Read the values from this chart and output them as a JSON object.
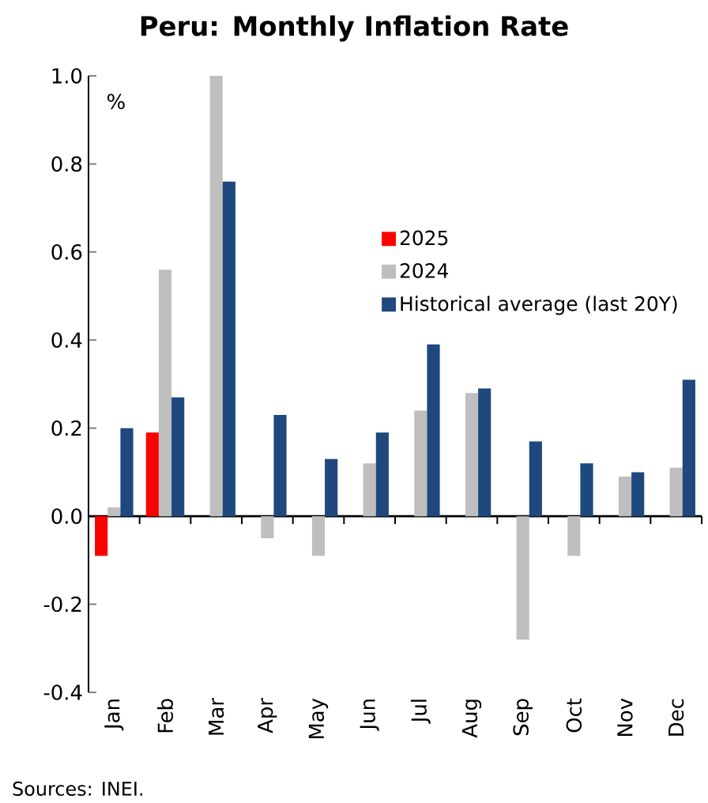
{
  "chart_data": {
    "type": "bar",
    "title": "Peru: Monthly Inflation Rate",
    "ylabel": "%",
    "categories": [
      "Jan",
      "Feb",
      "Mar",
      "Apr",
      "May",
      "Jun",
      "Jul",
      "Aug",
      "Sep",
      "Oct",
      "Nov",
      "Dec"
    ],
    "series": [
      {
        "name": "2025",
        "color": "#ff0000",
        "values": [
          -0.09,
          0.19,
          null,
          null,
          null,
          null,
          null,
          null,
          null,
          null,
          null,
          null
        ]
      },
      {
        "name": "2024",
        "color": "#bfbfbf",
        "values": [
          0.02,
          0.56,
          1.0,
          -0.05,
          -0.09,
          0.12,
          0.24,
          0.28,
          -0.28,
          -0.09,
          0.09,
          0.11
        ]
      },
      {
        "name": "Historical average (last 20Y)",
        "color": "#1f497d",
        "values": [
          0.2,
          0.27,
          0.76,
          0.23,
          0.13,
          0.19,
          0.39,
          0.29,
          0.17,
          0.12,
          0.1,
          0.31
        ]
      }
    ],
    "ylim": [
      -0.4,
      1.0
    ],
    "yticks": [
      {
        "value": -0.4,
        "label": "-0.4"
      },
      {
        "value": -0.2,
        "label": "-0.2"
      },
      {
        "value": 0,
        "label": "0.0"
      },
      {
        "value": 0.2,
        "label": "0.2"
      },
      {
        "value": 0.4,
        "label": "0.4"
      },
      {
        "value": 0.6,
        "label": "0.6"
      },
      {
        "value": 0.8,
        "label": "0.8"
      },
      {
        "value": 1.0,
        "label": "1.0"
      }
    ],
    "legend": "top right",
    "annotations": [
      "Sources: INEI."
    ]
  }
}
